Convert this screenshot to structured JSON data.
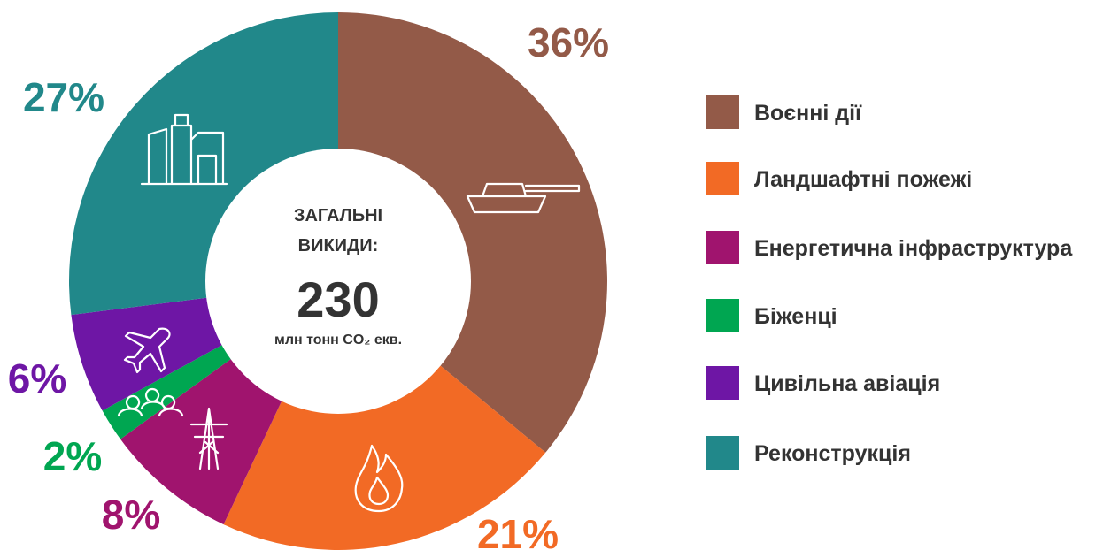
{
  "chart_data": {
    "type": "donut",
    "categories": [
      "Воєнні дії",
      "Ландшафтні пожежі",
      "Енергетична інфраструктура",
      "Біженці",
      "Цивільна авіація",
      "Реконструкція"
    ],
    "values": [
      36,
      21,
      8,
      2,
      6,
      27
    ],
    "value_labels": [
      "36%",
      "21%",
      "8%",
      "2%",
      "6%",
      "27%"
    ],
    "colors": [
      "#935a48",
      "#f26a25",
      "#a0146e",
      "#00a651",
      "#6e16a5",
      "#21888a"
    ],
    "center_title": [
      "ЗАГАЛЬНІ",
      "ВИКИДИ:"
    ],
    "total": 230,
    "total_unit": "млн тонн CO₂ екв.",
    "legend": "right"
  }
}
